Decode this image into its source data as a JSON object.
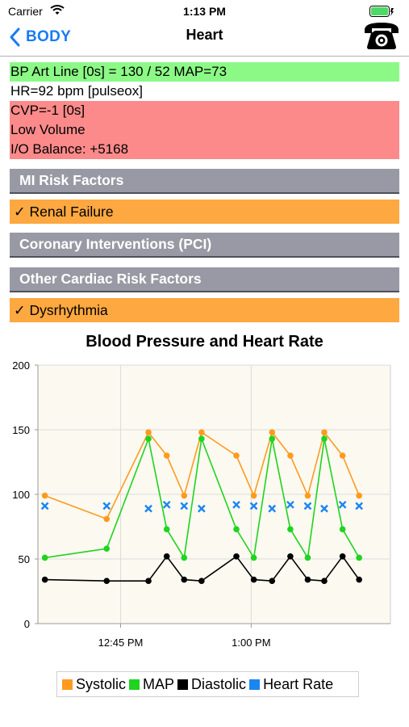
{
  "status_bar": {
    "carrier": "Carrier",
    "time": "1:13 PM"
  },
  "nav": {
    "back_label": "BODY",
    "title": "Heart",
    "phone_icon": "telephone-icon"
  },
  "vitals": [
    {
      "text": "BP Art Line [0s] = 130 / 52 MAP=73",
      "status": "normal",
      "color": "#8cf986"
    },
    {
      "text": "HR=92 bpm [pulseox]",
      "status": "none",
      "color": "#ffffff"
    },
    {
      "text": "CVP=-1 [0s]",
      "status": "alert",
      "color": "#fc8a8a"
    },
    {
      "text": "Low Volume",
      "status": "alert",
      "color": "#fc8a8a"
    },
    {
      "text": "I/O Balance: +5168",
      "status": "alert",
      "color": "#fc8a8a"
    }
  ],
  "sections": {
    "mi_risk": "MI Risk Factors",
    "mi_risk_items": [
      "✓ Renal Failure"
    ],
    "pci": "Coronary Interventions (PCI)",
    "other": "Other Cardiac Risk Factors",
    "other_items": [
      "✓ Dysrhythmia"
    ]
  },
  "colors": {
    "section_header": "#9899a4",
    "risk_item": "#fda841",
    "back_link": "#1a7bf2"
  },
  "chart_data": {
    "type": "line",
    "title": "Blood Pressure and Heart Rate",
    "ylim": [
      0,
      200
    ],
    "yticks": [
      0,
      50,
      100,
      150,
      200
    ],
    "x_unit": "minutes after 12:00 PM",
    "xlim": [
      35.5,
      76
    ],
    "xticks": [
      {
        "value": 45,
        "label": "12:45 PM"
      },
      {
        "value": 60,
        "label": "1:00 PM"
      }
    ],
    "grid": true,
    "legend_position": "bottom",
    "series": [
      {
        "name": "Systolic",
        "color": "#ff9a1f",
        "marker": "dot",
        "line": true,
        "x": [
          36.3,
          43.4,
          48.2,
          50.3,
          52.3,
          54.3,
          58.3,
          60.3,
          62.4,
          64.5,
          66.5,
          68.4,
          70.5,
          72.4
        ],
        "y": [
          99,
          81,
          148,
          130,
          99,
          148,
          130,
          99,
          148,
          130,
          99,
          148,
          130,
          99
        ]
      },
      {
        "name": "MAP",
        "color": "#1ed41e",
        "marker": "dot",
        "line": true,
        "x": [
          36.3,
          43.4,
          48.2,
          50.3,
          52.3,
          54.3,
          58.3,
          60.3,
          62.4,
          64.5,
          66.5,
          68.4,
          70.5,
          72.4
        ],
        "y": [
          51,
          58,
          143,
          73,
          51,
          143,
          73,
          51,
          143,
          73,
          51,
          143,
          73,
          51
        ]
      },
      {
        "name": "Diastolic",
        "color": "#000000",
        "marker": "dot",
        "line": true,
        "x": [
          36.3,
          43.4,
          48.2,
          50.3,
          52.3,
          54.3,
          58.3,
          60.3,
          62.4,
          64.5,
          66.5,
          68.4,
          70.5,
          72.4
        ],
        "y": [
          34,
          33,
          33,
          52,
          34,
          33,
          52,
          34,
          33,
          52,
          34,
          33,
          52,
          34
        ]
      },
      {
        "name": "Heart Rate",
        "color": "#1a86f0",
        "marker": "cross",
        "line": false,
        "x": [
          36.3,
          43.4,
          48.2,
          50.3,
          52.3,
          54.3,
          58.3,
          60.3,
          62.4,
          64.5,
          66.5,
          68.4,
          70.5,
          72.4
        ],
        "y": [
          91,
          91,
          89,
          92,
          91,
          89,
          92,
          91,
          89,
          92,
          91,
          89,
          92,
          91
        ]
      }
    ]
  }
}
